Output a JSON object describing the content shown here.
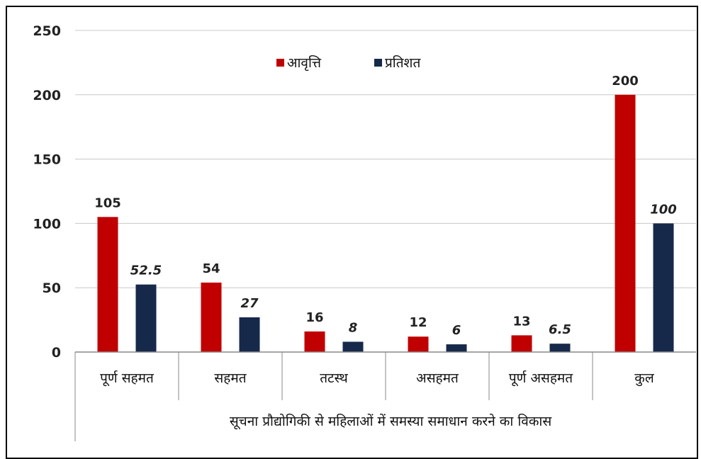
{
  "chart_data": {
    "type": "bar",
    "title": "",
    "xlabel": "सूचना प्रौद्योगिकी से महिलाओं में समस्या समाधान करने का विकास",
    "ylabel": "",
    "categories": [
      "पूर्ण सहमत",
      "सहमत",
      "तटस्थ",
      "असहमत",
      "पूर्ण असहमत",
      "कुल"
    ],
    "series": [
      {
        "name": "आवृत्ति",
        "color": "#c00000",
        "values": [
          105,
          54,
          16,
          12,
          13,
          200
        ],
        "labels": [
          "105",
          "54",
          "16",
          "12",
          "13",
          "200"
        ]
      },
      {
        "name": "प्रतिशत",
        "color": "#17294a",
        "values": [
          52.5,
          27,
          8,
          6,
          6.5,
          100
        ],
        "labels": [
          "52.5",
          "27",
          "8",
          "6",
          "6.5",
          "100"
        ]
      }
    ],
    "ylim": [
      0,
      250
    ],
    "yticks": [
      "0",
      "50",
      "100",
      "150",
      "200",
      "250"
    ],
    "grid": true,
    "legend": "top-center"
  }
}
